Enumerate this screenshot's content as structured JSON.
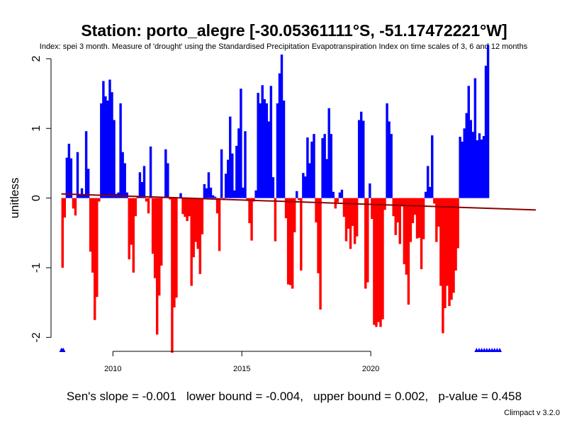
{
  "title": "Station: porto_alegre [-30.05361111°S, -51.17472221°W]",
  "subtitle": "Index: spei 3 month. Measure of 'drought' using the Standardised Precipitation Evapotranspiration Index on time scales of 3, 6 and 12 months",
  "stats": {
    "slope": "Sen's slope = -0.001",
    "lower": "lower bound = -0.004,",
    "upper": "upper bound = 0.002,",
    "pvalue": "p-value = 0.458"
  },
  "credit": "Climpact v 3.2.0",
  "colors": {
    "positive": "#0000ff",
    "negative": "#ff0000",
    "trend": "#8b0000",
    "axis": "#000000"
  },
  "chart_data": {
    "type": "bar",
    "ylabel": "unitless",
    "xlabel": "",
    "ylim": [
      -2.2,
      2.05
    ],
    "yticks": [
      -2,
      -1,
      0,
      1,
      2
    ],
    "xticks": [
      2010,
      2015,
      2020
    ],
    "x_start": 2008.0,
    "x_step": 0.0833333,
    "values": [
      -1.0,
      -0.28,
      0.58,
      0.78,
      0.57,
      -0.15,
      -0.25,
      0.66,
      0.05,
      0.14,
      0.05,
      0.96,
      0.42,
      -0.77,
      -1.07,
      -1.75,
      -1.42,
      -0.05,
      1.36,
      1.68,
      1.46,
      1.4,
      1.7,
      1.52,
      1.12,
      0.06,
      0.08,
      1.36,
      0.66,
      0.5,
      0.08,
      -0.88,
      -0.67,
      -1.07,
      -0.26,
      0.02,
      0.37,
      0.23,
      0.46,
      -0.05,
      -0.22,
      0.74,
      -0.8,
      -1.15,
      -1.96,
      -1.4,
      -0.97,
      0.02,
      0.7,
      0.5,
      -0.02,
      -2.22,
      -1.57,
      -1.43,
      0.01,
      0.07,
      -0.23,
      -0.27,
      -0.33,
      -0.26,
      -1.26,
      -0.85,
      -0.63,
      -0.73,
      -1.09,
      -0.52,
      0.2,
      0.14,
      0.37,
      0.15,
      0.04,
      0.02,
      -0.22,
      -0.76,
      0.7,
      -0.03,
      0.35,
      0.55,
      1.17,
      0.64,
      0.11,
      0.75,
      1.0,
      1.57,
      0.15,
      0.96,
      -0.04,
      -0.36,
      -0.61,
      -0.05,
      0.11,
      1.51,
      1.36,
      1.62,
      1.42,
      1.36,
      1.1,
      1.61,
      0.3,
      -0.62,
      1.36,
      1.79,
      2.06,
      1.4,
      -0.29,
      -1.24,
      -1.25,
      -1.3,
      -0.49,
      0.1,
      -0.03,
      -1.04,
      0.36,
      0.31,
      0.87,
      0.5,
      0.81,
      0.92,
      -0.35,
      -1.08,
      -1.6,
      0.86,
      0.92,
      0.56,
      1.29,
      0.92,
      0.09,
      -0.15,
      -0.06,
      0.08,
      0.12,
      -0.27,
      -0.62,
      -0.44,
      -0.73,
      -0.4,
      -0.66,
      -0.55,
      1.12,
      1.24,
      1.11,
      -1.3,
      -1.21,
      0.21,
      -0.3,
      -1.82,
      -1.85,
      -1.78,
      -1.85,
      -1.74,
      -0.17,
      1.36,
      1.1,
      0.92,
      -0.26,
      -0.53,
      -0.35,
      -0.66,
      -0.12,
      -0.95,
      -1.1,
      -1.53,
      -0.63,
      -0.36,
      -0.24,
      -0.58,
      -0.57,
      -1.02,
      -0.59,
      0.09,
      0.46,
      0.16,
      0.9,
      -0.08,
      -0.63,
      -0.41,
      -1.26,
      -1.94,
      -1.58,
      -1.26,
      -1.55,
      -1.46,
      -1.36,
      -1.04,
      -0.72,
      0.88,
      0.81,
      1.0,
      1.22,
      1.61,
      1.12,
      0.95,
      1.72,
      0.83,
      0.93,
      0.84,
      0.89,
      1.9,
      2.2
    ],
    "trend": {
      "x": [
        2008.0,
        2026.4
      ],
      "y": [
        0.06,
        -0.17
      ]
    },
    "na_markers": [
      2008.0,
      2008.04,
      2008.08,
      2024.1,
      2024.2,
      2024.3,
      2024.4,
      2024.5,
      2024.6,
      2024.7,
      2024.8,
      2024.9,
      2025.0
    ]
  }
}
